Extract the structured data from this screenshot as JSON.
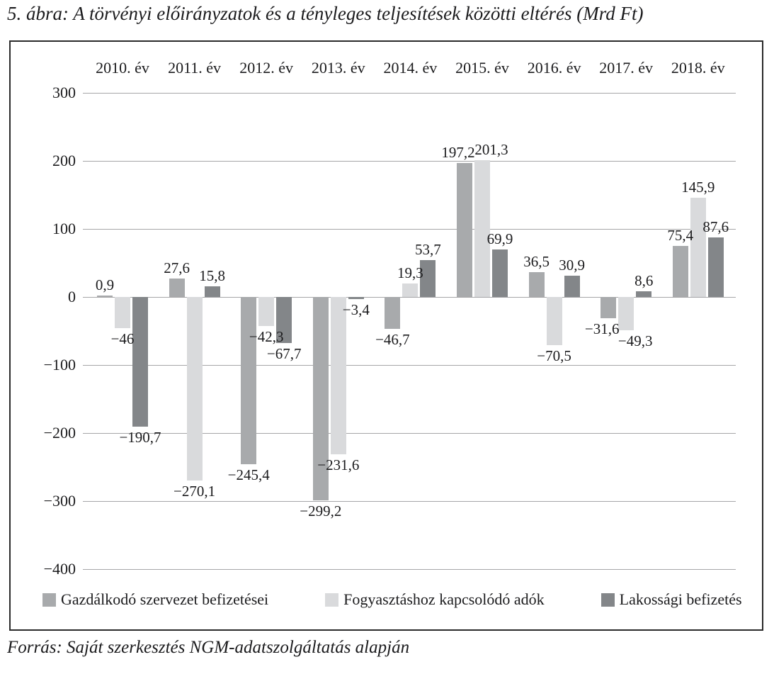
{
  "title": "5. ábra: A törvényi előirányzatok és a tényleges teljesítések közötti eltérés (Mrd Ft)",
  "source": "Forrás: Saját szerkesztés NGM-adatszolgáltatás alapján",
  "chart_data": {
    "type": "bar",
    "categories": [
      "2010. év",
      "2011. év",
      "2012. év",
      "2013. év",
      "2014. év",
      "2015. év",
      "2016. év",
      "2017. év",
      "2018. év"
    ],
    "series": [
      {
        "name": "Gazdálkodó szervezet befizetései",
        "color": "#a8aaac",
        "values": [
          0.9,
          27.6,
          -245.4,
          -299.2,
          -46.7,
          197.2,
          36.5,
          -31.6,
          75.4
        ],
        "labels": [
          "0,9",
          "27,6",
          "−245,4",
          "−299,2",
          "−46,7",
          "197,2",
          "36,5",
          "−31,6",
          "75,4"
        ]
      },
      {
        "name": "Fogyasztáshoz kapcsolódó adók",
        "color": "#d9dadc",
        "values": [
          -46,
          -270.1,
          -42.3,
          -231.6,
          19.3,
          201.3,
          -70.5,
          -49.3,
          145.9
        ],
        "labels": [
          "−46",
          "−270,1",
          "−42,3",
          "−231,6",
          "19,3",
          "201,3",
          "−70,5",
          "−49,3",
          "145,9"
        ]
      },
      {
        "name": "Lakossági befizetés",
        "color": "#838689",
        "values": [
          -190.7,
          15.8,
          -67.7,
          -3.4,
          53.7,
          69.9,
          30.9,
          8.6,
          87.6
        ],
        "labels": [
          "−190,7",
          "15,8",
          "−67,7",
          "−3,4",
          "53,7",
          "69,9",
          "30,9",
          "8,6",
          "87,6"
        ]
      }
    ],
    "y_axis": {
      "min": -400,
      "max": 300,
      "step": 100,
      "ticks": [
        "300",
        "200",
        "100",
        "0",
        "−100",
        "−200",
        "−300",
        "−400"
      ]
    },
    "grid": true,
    "legend_position": "bottom",
    "unit": "Mrd Ft",
    "title": "5. ábra: A törvényi előirányzatok és a tényleges teljesítések közötti eltérés (Mrd Ft)",
    "xlabel": "",
    "ylabel": ""
  }
}
